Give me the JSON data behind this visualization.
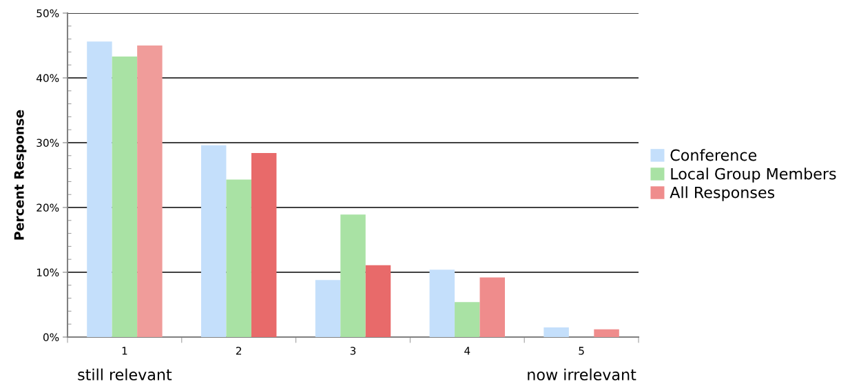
{
  "chart_data": {
    "type": "bar",
    "ylabel": "Percent Response",
    "categories": [
      "1",
      "2",
      "3",
      "4",
      "5"
    ],
    "series": [
      {
        "name": "Conference",
        "color": "#c4dffb",
        "values": [
          45.6,
          29.6,
          8.8,
          10.4,
          1.5
        ]
      },
      {
        "name": "Local Group Members",
        "color": "#a9e2a4",
        "values": [
          43.3,
          24.3,
          18.9,
          5.4,
          0
        ]
      },
      {
        "name": "All Responses",
        "color": "#ef8c8c",
        "colors": [
          "#f09c9a",
          "#e86a6a",
          "#e86a6a",
          "#ef8c8c",
          "#ef8c8c"
        ],
        "values": [
          45.0,
          28.4,
          11.1,
          9.2,
          1.2
        ]
      }
    ],
    "ylim": [
      0,
      50
    ],
    "yticks": [
      {
        "value": 0,
        "label": "0%"
      },
      {
        "value": 10,
        "label": "10%"
      },
      {
        "value": 20,
        "label": "20%"
      },
      {
        "value": 30,
        "label": "30%"
      },
      {
        "value": 40,
        "label": "40%"
      },
      {
        "value": 50,
        "label": "50%"
      }
    ],
    "grid": "y",
    "legend": "right",
    "annotations": [
      "still relevant",
      "now irrelevant"
    ]
  }
}
